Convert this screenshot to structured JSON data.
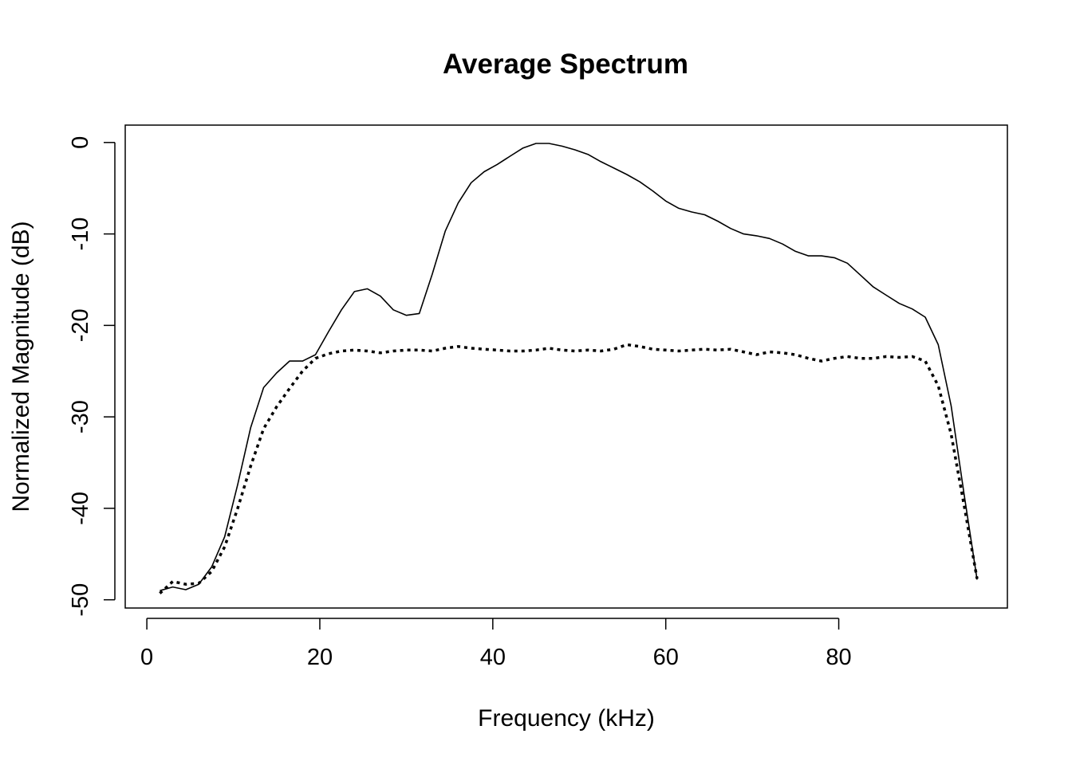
{
  "chart_data": {
    "type": "line",
    "title": "Average Spectrum",
    "xlabel": "Frequency (kHz)",
    "ylabel": "Normalized Magnitude (dB)",
    "xlim": [
      -2.5,
      99.5
    ],
    "ylim": [
      -50.9,
      1.9
    ],
    "xticks": [
      0,
      20,
      40,
      60,
      80
    ],
    "yticks": [
      0,
      -10,
      -20,
      -30,
      -40,
      -50
    ],
    "xtick_labels": [
      "0",
      "20",
      "40",
      "60",
      "80"
    ],
    "ytick_labels": [
      "0",
      "-10",
      "-20",
      "-30",
      "-40",
      "-50"
    ],
    "grid": false,
    "colors": {
      "line": "#000000"
    },
    "series": [
      {
        "style": "solid",
        "x": [
          1.5,
          3,
          4.5,
          6,
          7.5,
          9,
          10.5,
          12,
          13.5,
          15,
          16.5,
          18,
          19.5,
          21,
          22.5,
          24,
          25.5,
          27,
          28.5,
          30,
          31.5,
          33,
          34.5,
          36,
          37.5,
          39,
          40.5,
          42,
          43.5,
          45,
          46.5,
          48,
          49.5,
          51,
          52.5,
          54,
          55.5,
          57,
          58.5,
          60,
          61.5,
          63,
          64.5,
          66,
          67.5,
          69,
          70.5,
          72,
          73.5,
          75,
          76.5,
          78,
          79.5,
          81,
          82.5,
          84,
          85.5,
          87,
          88.5,
          90,
          91.5,
          93,
          94.5,
          96
        ],
        "y": [
          -49.0,
          -48.6,
          -48.9,
          -48.3,
          -46.4,
          -43.1,
          -37.4,
          -31.2,
          -26.8,
          -25.2,
          -23.9,
          -23.9,
          -23.2,
          -20.7,
          -18.3,
          -16.3,
          -16.0,
          -16.8,
          -18.3,
          -18.9,
          -18.7,
          -14.4,
          -9.7,
          -6.6,
          -4.4,
          -3.2,
          -2.4,
          -1.5,
          -0.6,
          -0.1,
          -0.1,
          -0.4,
          -0.8,
          -1.3,
          -2.1,
          -2.8,
          -3.5,
          -4.3,
          -5.3,
          -6.4,
          -7.2,
          -7.6,
          -7.9,
          -8.6,
          -9.4,
          -10.0,
          -10.2,
          -10.5,
          -11.1,
          -11.9,
          -12.4,
          -12.4,
          -12.6,
          -13.2,
          -14.5,
          -15.8,
          -16.7,
          -17.6,
          -18.2,
          -19.1,
          -22.1,
          -28.8,
          -38.5,
          -47.8
        ]
      },
      {
        "style": "dotted",
        "x": [
          1.5,
          3,
          4.5,
          6,
          7.5,
          9,
          10.5,
          12,
          13.5,
          15,
          16.5,
          18,
          19.5,
          21,
          22.5,
          24,
          25.5,
          27,
          28.5,
          30,
          31.5,
          33,
          34.5,
          36,
          37.5,
          39,
          40.5,
          42,
          43.5,
          45,
          46.5,
          48,
          49.5,
          51,
          52.5,
          54,
          55.5,
          57,
          58.5,
          60,
          61.5,
          63,
          64.5,
          66,
          67.5,
          69,
          70.5,
          72,
          73.5,
          75,
          76.5,
          78,
          79.5,
          81,
          82.5,
          84,
          85.5,
          87,
          88.5,
          90,
          91.5,
          93,
          94.5,
          96
        ],
        "y": [
          -49.3,
          -48.0,
          -48.3,
          -48.2,
          -46.9,
          -44.2,
          -40.0,
          -35.4,
          -31.3,
          -28.9,
          -26.9,
          -25.0,
          -23.6,
          -23.1,
          -22.8,
          -22.7,
          -22.8,
          -23.0,
          -22.8,
          -22.7,
          -22.7,
          -22.8,
          -22.5,
          -22.3,
          -22.5,
          -22.6,
          -22.7,
          -22.8,
          -22.8,
          -22.7,
          -22.5,
          -22.7,
          -22.8,
          -22.7,
          -22.8,
          -22.6,
          -22.1,
          -22.3,
          -22.6,
          -22.7,
          -22.8,
          -22.7,
          -22.6,
          -22.7,
          -22.6,
          -22.9,
          -23.2,
          -22.9,
          -23.0,
          -23.2,
          -23.6,
          -23.9,
          -23.6,
          -23.4,
          -23.6,
          -23.6,
          -23.4,
          -23.5,
          -23.4,
          -23.9,
          -26.6,
          -31.9,
          -39.7,
          -47.7
        ]
      }
    ]
  }
}
